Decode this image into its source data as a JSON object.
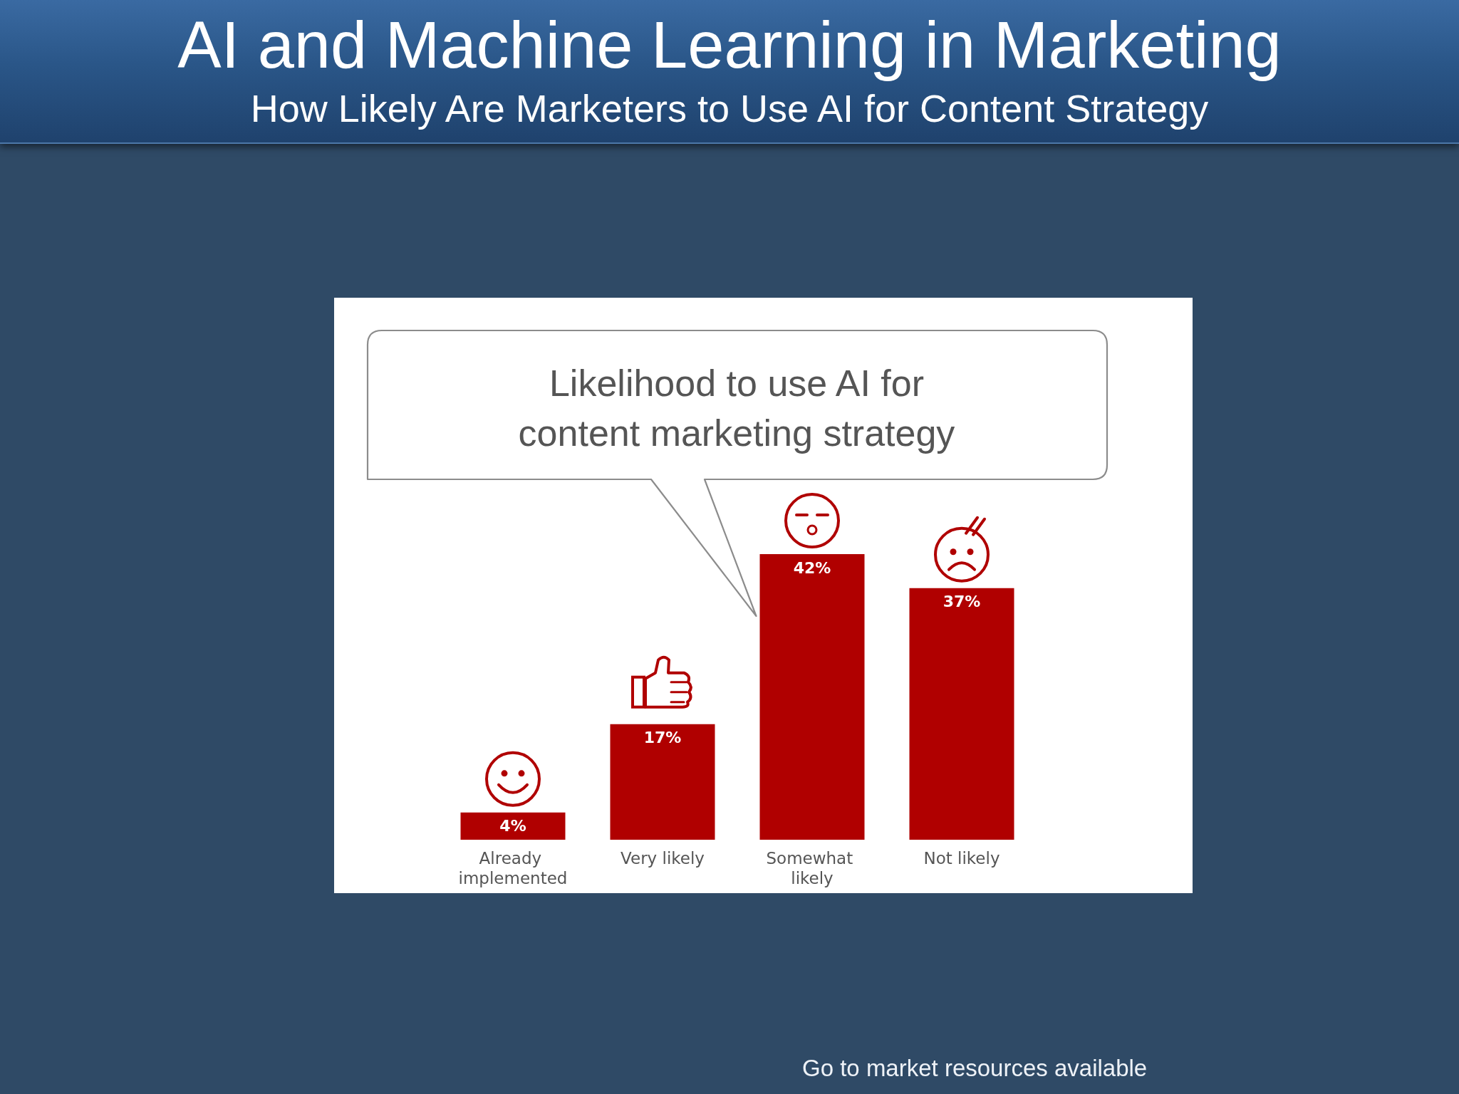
{
  "chart_data": {
    "type": "bar",
    "title": "AI and Machine Learning in Marketing",
    "subtitle": "How Likely Are Marketers to Use AI for Content Strategy",
    "categories": [
      "Already implemented",
      "Very likely",
      "Somewhat likely",
      "Not likely"
    ],
    "values": [
      4,
      17,
      42,
      37
    ],
    "value_labels": [
      "4%",
      "17%",
      "42%",
      "37%"
    ],
    "color": "#b00000",
    "annotations": [
      "Likelihood to use AI for content marketing strategy",
      "Go to market resources available"
    ]
  }
}
